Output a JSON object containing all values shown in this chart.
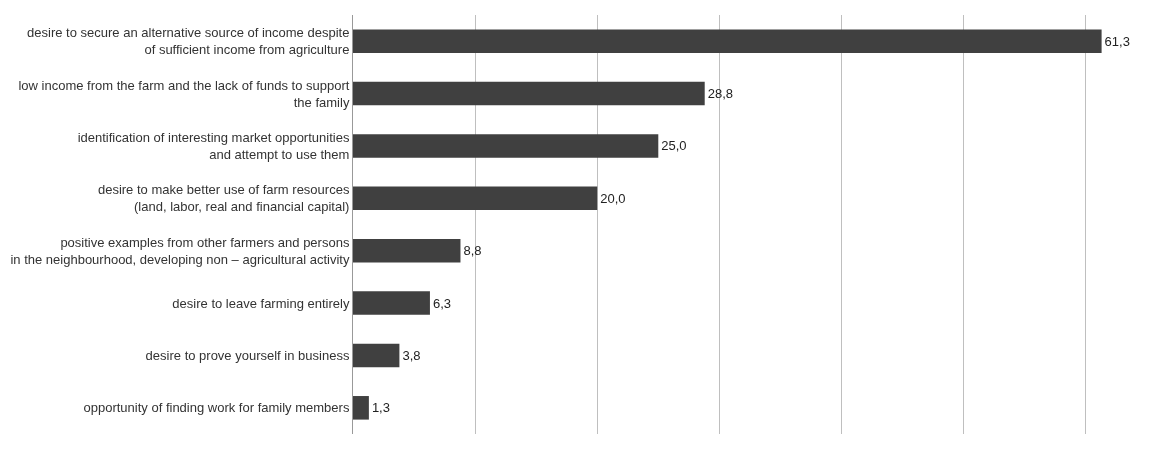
{
  "chart_data": {
    "type": "bar",
    "orientation": "horizontal",
    "categories": [
      "desire to secure an alternative source of income despite\nof sufficient income from agriculture",
      "low income from the farm and the lack of funds to support\nthe family",
      "identification of interesting market opportunities\nand attempt to use them",
      "desire to make better use of farm resources\n(land, labor, real and financial capital)",
      "positive examples from other farmers and persons\nin the neighbourhood, developing non – agricultural activity",
      "desire to leave farming entirely",
      "desire to prove yourself in business",
      "opportunity of finding work for family members"
    ],
    "values": [
      61.3,
      28.8,
      25.0,
      20.0,
      8.8,
      6.3,
      3.8,
      1.3
    ],
    "value_labels": [
      "61,3",
      "28,8",
      "25,0",
      "20,0",
      "8,8",
      "6,3",
      "3,8",
      "1,3"
    ],
    "color": "#404040",
    "xticks": [
      {
        "value": 0,
        "label": null
      },
      {
        "value": 10,
        "label": null
      },
      {
        "value": 20,
        "label": null
      },
      {
        "value": 30,
        "label": null
      },
      {
        "value": 40,
        "label": null
      },
      {
        "value": 50,
        "label": null
      },
      {
        "value": 60,
        "label": null
      }
    ],
    "grid": "x",
    "tick_labels": "y"
  }
}
